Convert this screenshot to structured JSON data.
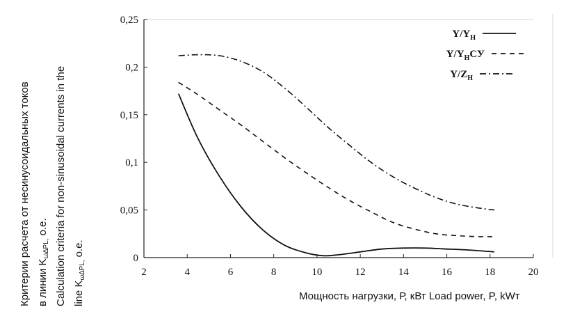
{
  "chart_data": {
    "type": "line",
    "xlabel": "Мощность нагрузки, Р, кВт Load power, P, kWт",
    "ylabel_lines": [
      "Критерии расчета от несинусоидальных токов",
      "в линии K",
      "Calculation criteria for non-sinusoidal currents in the",
      "line K"
    ],
    "ylabel_subscript": "ω∆PL,",
    "ylabel_unit": " о.е.",
    "xlim": [
      2,
      20
    ],
    "ylim": [
      0,
      0.25
    ],
    "xticks": [
      2,
      4,
      6,
      8,
      10,
      12,
      14,
      16,
      18,
      20
    ],
    "yticks": [
      0,
      0.05,
      0.1,
      0.15,
      0.2,
      0.25
    ],
    "xtick_labels": [
      "2",
      "4",
      "6",
      "8",
      "10",
      "12",
      "14",
      "16",
      "18",
      "20"
    ],
    "ytick_labels": [
      "0",
      "0,05",
      "0,1",
      "0,15",
      "0,2",
      "0,25"
    ],
    "grid": false,
    "legend_position": "top-right",
    "series": [
      {
        "name": "Y/YН",
        "legend_main": "Y/Y",
        "legend_sub": "H",
        "legend_tail": "",
        "dash": "solid",
        "x": [
          3.6,
          4.5,
          5.5,
          6.5,
          7.5,
          8.5,
          9.5,
          10.3,
          11,
          12,
          13,
          14,
          15,
          16,
          17,
          18.2
        ],
        "y": [
          0.172,
          0.125,
          0.085,
          0.053,
          0.029,
          0.013,
          0.005,
          0.002,
          0.003,
          0.006,
          0.009,
          0.01,
          0.01,
          0.009,
          0.008,
          0.006
        ]
      },
      {
        "name": "Y/YНСУ",
        "legend_main": "Y/Y",
        "legend_sub": "H",
        "legend_tail": "СУ",
        "dash": "dash",
        "x": [
          3.6,
          4.5,
          5.5,
          6.5,
          7.5,
          8.5,
          9.5,
          10.5,
          11.5,
          12.5,
          13.5,
          14.5,
          15.5,
          16.5,
          17.5,
          18.2
        ],
        "y": [
          0.184,
          0.171,
          0.155,
          0.139,
          0.122,
          0.105,
          0.089,
          0.074,
          0.06,
          0.048,
          0.037,
          0.03,
          0.025,
          0.023,
          0.022,
          0.022
        ]
      },
      {
        "name": "Y/ZН",
        "legend_main": "Y/Z",
        "legend_sub": "H",
        "legend_tail": "",
        "dash": "dashdot",
        "x": [
          3.6,
          4.5,
          5.5,
          6.5,
          7.5,
          8.5,
          9.5,
          10.5,
          11.5,
          12.5,
          13.5,
          14.5,
          15.5,
          16.5,
          17.5,
          18.2
        ],
        "y": [
          0.212,
          0.213,
          0.212,
          0.206,
          0.195,
          0.178,
          0.158,
          0.137,
          0.118,
          0.1,
          0.085,
          0.073,
          0.063,
          0.056,
          0.052,
          0.05
        ]
      }
    ]
  }
}
